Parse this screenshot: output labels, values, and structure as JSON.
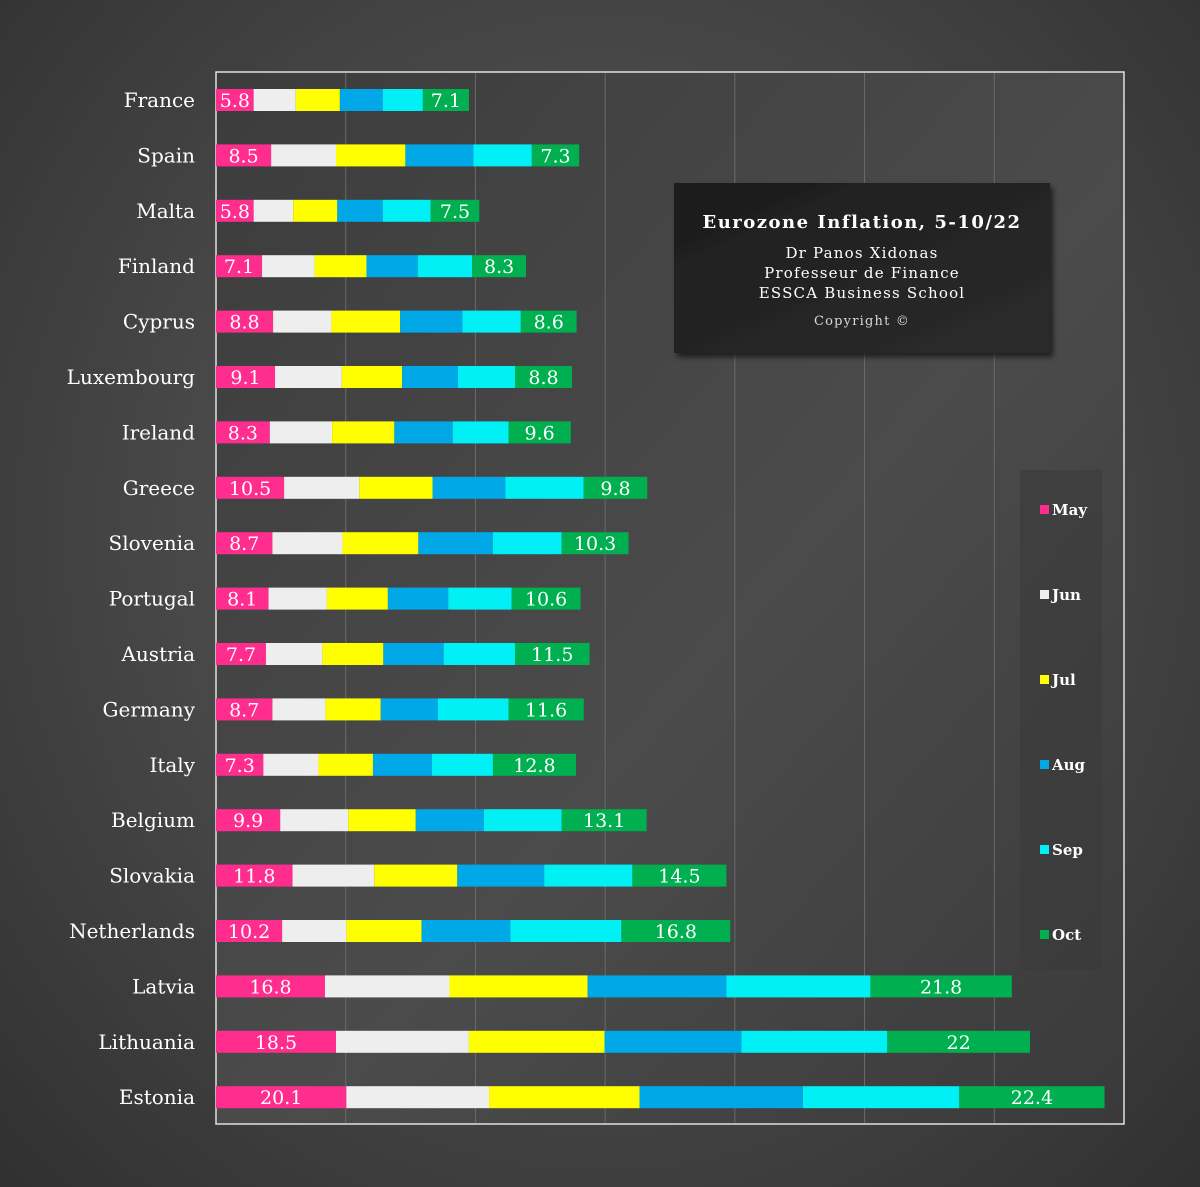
{
  "chart_data": {
    "type": "bar",
    "stacked": true,
    "orientation": "horizontal",
    "title_box": {
      "title": "Eurozone Inflation, 5-10/22",
      "lines": [
        "Dr Panos Xidonas",
        "Professeur de Finance",
        "ESSCA Business School"
      ],
      "copyright": "Copyright ©"
    },
    "categories": [
      "France",
      "Spain",
      "Malta",
      "Finland",
      "Cyprus",
      "Luxembourg",
      "Ireland",
      "Greece",
      "Slovenia",
      "Portugal",
      "Austria",
      "Germany",
      "Italy",
      "Belgium",
      "Slovakia",
      "Netherlands",
      "Latvia",
      "Lithuania",
      "Estonia"
    ],
    "series": [
      {
        "name": "May",
        "color": "#ff2d8e",
        "values": [
          5.8,
          8.5,
          5.8,
          7.1,
          8.8,
          9.1,
          8.3,
          10.5,
          8.7,
          8.1,
          7.7,
          8.7,
          7.3,
          9.9,
          11.8,
          10.2,
          16.8,
          18.5,
          20.1
        ]
      },
      {
        "name": "Jun",
        "color": "#eeeeee",
        "values": [
          6.5,
          10.0,
          6.1,
          8.1,
          9.0,
          10.3,
          9.6,
          11.6,
          10.8,
          9.0,
          8.7,
          8.2,
          8.5,
          10.5,
          12.6,
          9.9,
          19.2,
          20.5,
          22.0
        ]
      },
      {
        "name": "Jul",
        "color": "#ffff00",
        "values": [
          6.8,
          10.7,
          6.8,
          8.0,
          10.6,
          9.3,
          9.6,
          11.3,
          11.7,
          9.4,
          9.4,
          8.5,
          8.4,
          10.4,
          12.8,
          11.6,
          21.3,
          20.9,
          23.2
        ]
      },
      {
        "name": "Aug",
        "color": "#00a8e8",
        "values": [
          6.6,
          10.5,
          7.0,
          7.9,
          9.6,
          8.6,
          9.0,
          11.2,
          11.5,
          9.3,
          9.3,
          8.8,
          9.1,
          10.5,
          13.4,
          13.7,
          21.4,
          21.1,
          25.2
        ]
      },
      {
        "name": "Sep",
        "color": "#00f0f5",
        "values": [
          6.2,
          9.0,
          7.4,
          8.4,
          9.0,
          8.8,
          8.6,
          12.1,
          10.6,
          9.8,
          11.0,
          10.9,
          9.4,
          12.0,
          13.6,
          17.1,
          22.2,
          22.5,
          24.1
        ]
      },
      {
        "name": "Oct",
        "color": "#00b050",
        "values": [
          7.1,
          7.3,
          7.5,
          8.3,
          8.6,
          8.8,
          9.6,
          9.8,
          10.3,
          10.6,
          11.5,
          11.6,
          12.8,
          13.1,
          14.5,
          16.8,
          21.8,
          22.0,
          22.4
        ]
      }
    ],
    "labeled_series": [
      "May",
      "Oct"
    ],
    "xlim": [
      0,
      140
    ],
    "x_gridlines": [
      20,
      40,
      60,
      80,
      100,
      120
    ],
    "grid": true,
    "legend_position": "right"
  }
}
